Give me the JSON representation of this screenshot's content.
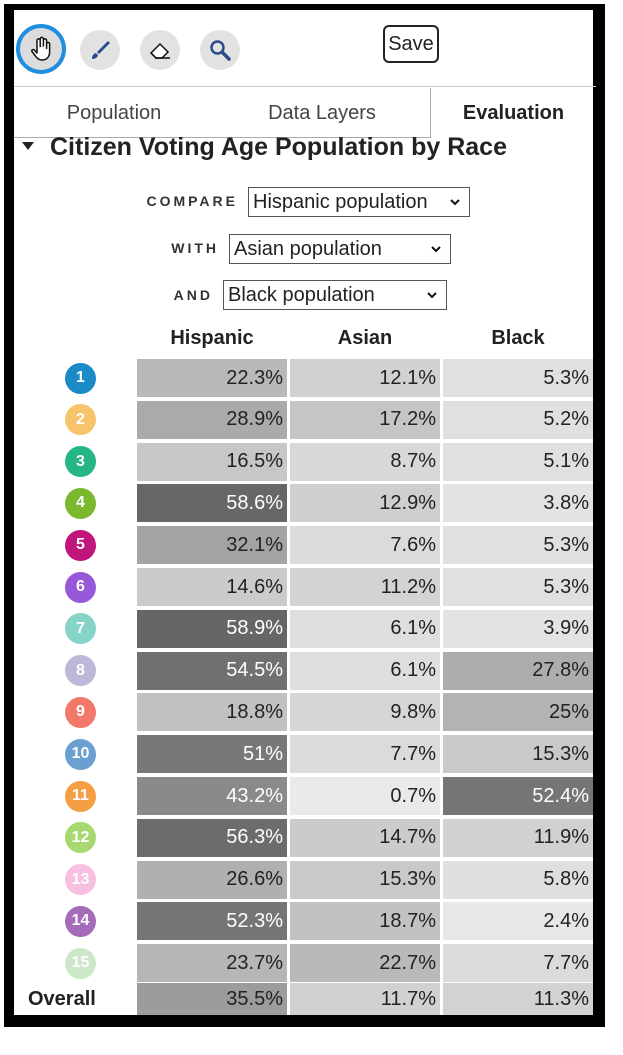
{
  "toolbar": {
    "tools": [
      {
        "name": "hand-tool",
        "icon": "hand-icon",
        "active": true
      },
      {
        "name": "brush-tool",
        "icon": "brush-icon",
        "active": false
      },
      {
        "name": "eraser-tool",
        "icon": "eraser-icon",
        "active": false
      },
      {
        "name": "zoom-tool",
        "icon": "magnifier-icon",
        "active": false
      }
    ],
    "save_label": "Save"
  },
  "tabs": [
    {
      "label": "Population",
      "selected": false
    },
    {
      "label": "Data Layers",
      "selected": false
    },
    {
      "label": "Evaluation",
      "selected": true
    }
  ],
  "section": {
    "title": "Citizen Voting Age Population by Race",
    "compare_label": "COMPARE",
    "compare_value": "Hispanic population",
    "with_label": "WITH",
    "with_value": "Asian population",
    "and_label": "AND",
    "and_value": "Black population"
  },
  "table": {
    "columns": [
      "Hispanic",
      "Asian",
      "Black"
    ],
    "rows": [
      {
        "district": "1",
        "color": "#1a8bc6",
        "values": [
          "22.3%",
          "12.1%",
          "5.3%"
        ],
        "num": [
          22.3,
          12.1,
          5.3
        ]
      },
      {
        "district": "2",
        "color": "#f7c46c",
        "values": [
          "28.9%",
          "17.2%",
          "5.2%"
        ],
        "num": [
          28.9,
          17.2,
          5.2
        ]
      },
      {
        "district": "3",
        "color": "#26b587",
        "values": [
          "16.5%",
          "8.7%",
          "5.1%"
        ],
        "num": [
          16.5,
          8.7,
          5.1
        ]
      },
      {
        "district": "4",
        "color": "#7ab82e",
        "values": [
          "58.6%",
          "12.9%",
          "3.8%"
        ],
        "num": [
          58.6,
          12.9,
          3.8
        ]
      },
      {
        "district": "5",
        "color": "#c0157a",
        "values": [
          "32.1%",
          "7.6%",
          "5.3%"
        ],
        "num": [
          32.1,
          7.6,
          5.3
        ]
      },
      {
        "district": "6",
        "color": "#9657d8",
        "values": [
          "14.6%",
          "11.2%",
          "5.3%"
        ],
        "num": [
          14.6,
          11.2,
          5.3
        ]
      },
      {
        "district": "7",
        "color": "#86d4c8",
        "values": [
          "58.9%",
          "6.1%",
          "3.9%"
        ],
        "num": [
          58.9,
          6.1,
          3.9
        ]
      },
      {
        "district": "8",
        "color": "#bdb8d8",
        "values": [
          "54.5%",
          "6.1%",
          "27.8%"
        ],
        "num": [
          54.5,
          6.1,
          27.8
        ]
      },
      {
        "district": "9",
        "color": "#f2786a",
        "values": [
          "18.8%",
          "9.8%",
          "25%"
        ],
        "num": [
          18.8,
          9.8,
          25
        ]
      },
      {
        "district": "10",
        "color": "#6a9fd0",
        "values": [
          "51%",
          "7.7%",
          "15.3%"
        ],
        "num": [
          51,
          7.7,
          15.3
        ]
      },
      {
        "district": "11",
        "color": "#f59e43",
        "values": [
          "43.2%",
          "0.7%",
          "52.4%"
        ],
        "num": [
          43.2,
          0.7,
          52.4
        ]
      },
      {
        "district": "12",
        "color": "#a8d870",
        "values": [
          "56.3%",
          "14.7%",
          "11.9%"
        ],
        "num": [
          56.3,
          14.7,
          11.9
        ]
      },
      {
        "district": "13",
        "color": "#f7c0e0",
        "values": [
          "26.6%",
          "15.3%",
          "5.8%"
        ],
        "num": [
          26.6,
          15.3,
          5.8
        ]
      },
      {
        "district": "14",
        "color": "#a36bb8",
        "values": [
          "52.3%",
          "18.7%",
          "2.4%"
        ],
        "num": [
          52.3,
          18.7,
          2.4
        ]
      },
      {
        "district": "15",
        "color": "#cce8c8",
        "values": [
          "23.7%",
          "22.7%",
          "7.7%"
        ],
        "num": [
          23.7,
          22.7,
          7.7
        ]
      }
    ],
    "overall": {
      "label": "Overall",
      "values": [
        "35.5%",
        "11.7%",
        "11.3%"
      ],
      "num": [
        35.5,
        11.7,
        11.3
      ]
    }
  }
}
